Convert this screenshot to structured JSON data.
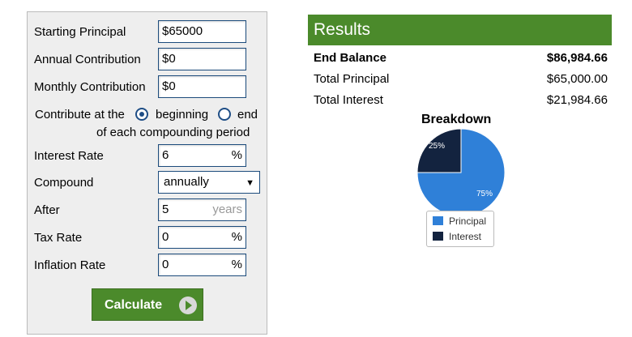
{
  "form": {
    "starting_principal": {
      "label": "Starting Principal",
      "value": "$65000"
    },
    "annual_contribution": {
      "label": "Annual Contribution",
      "value": "$0"
    },
    "monthly_contribution": {
      "label": "Monthly Contribution",
      "value": "$0"
    },
    "contribute": {
      "label": "Contribute at the",
      "option_beginning": "beginning",
      "option_end": "end",
      "selected": "beginning",
      "suffix": "of each compounding period"
    },
    "interest_rate": {
      "label": "Interest Rate",
      "value": "6",
      "unit": "%"
    },
    "compound": {
      "label": "Compound",
      "value": "annually"
    },
    "after": {
      "label": "After",
      "value": "5",
      "unit": "years"
    },
    "tax_rate": {
      "label": "Tax Rate",
      "value": "0",
      "unit": "%"
    },
    "inflation_rate": {
      "label": "Inflation Rate",
      "value": "0",
      "unit": "%"
    },
    "calculate_label": "Calculate"
  },
  "results": {
    "header": "Results",
    "end_balance": {
      "label": "End Balance",
      "value": "$86,984.66"
    },
    "total_principal": {
      "label": "Total Principal",
      "value": "$65,000.00"
    },
    "total_interest": {
      "label": "Total Interest",
      "value": "$21,984.66"
    }
  },
  "chart_data": {
    "type": "pie",
    "title": "Breakdown",
    "categories": [
      "Principal",
      "Interest"
    ],
    "values": [
      75,
      25
    ],
    "labels": [
      "75%",
      "25%"
    ],
    "colors": [
      "#2f80d8",
      "#13233f"
    ],
    "legend": "bottom"
  },
  "colors": {
    "accent": "#4b8a2b",
    "input_border": "#1c4b7c"
  }
}
